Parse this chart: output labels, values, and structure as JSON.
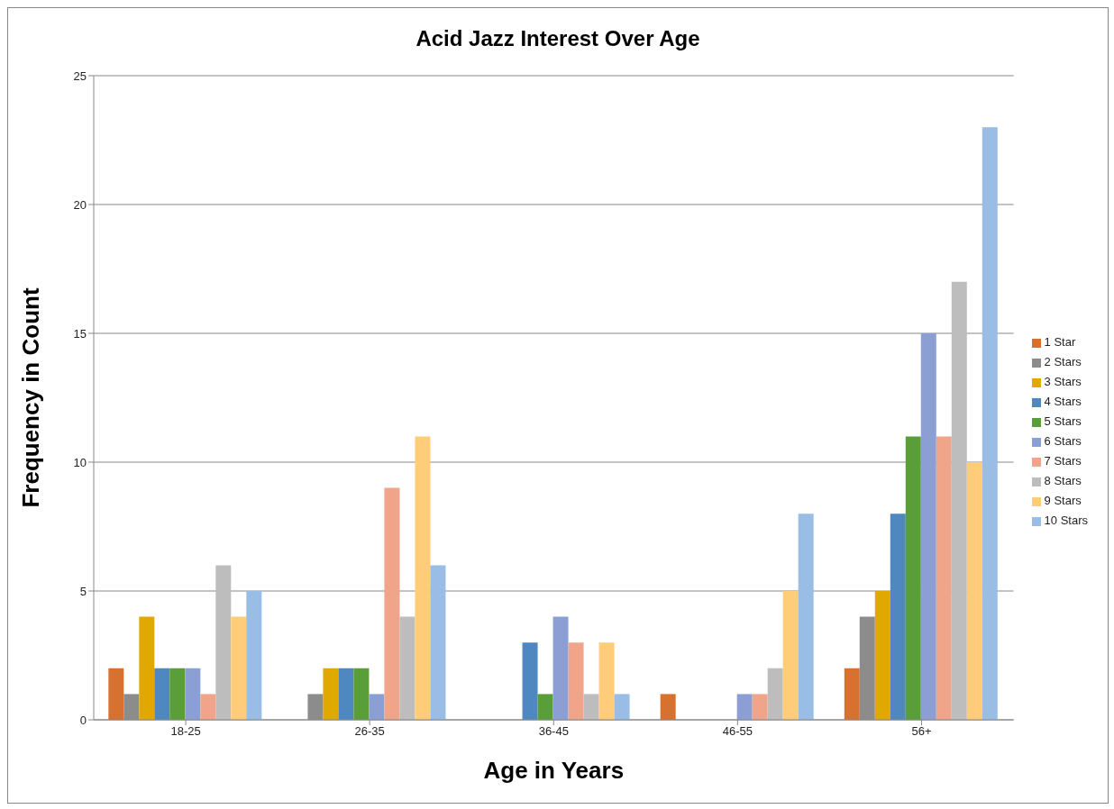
{
  "chart_data": {
    "type": "bar",
    "title": "Acid Jazz Interest Over Age",
    "xlabel": "Age in Years",
    "ylabel": "Frequency in Count",
    "categories": [
      "18-25",
      "26-35",
      "36-45",
      "46-55",
      "56+"
    ],
    "series": [
      {
        "name": "1 Star",
        "color": "#d6712f",
        "values": [
          2,
          0,
          0,
          1,
          2
        ]
      },
      {
        "name": "2 Stars",
        "color": "#8c8c8c",
        "values": [
          1,
          1,
          0,
          0,
          4
        ]
      },
      {
        "name": "3 Stars",
        "color": "#e0a800",
        "values": [
          4,
          2,
          0,
          0,
          5
        ]
      },
      {
        "name": "4 Stars",
        "color": "#4f87c0",
        "values": [
          2,
          2,
          3,
          0,
          8
        ]
      },
      {
        "name": "5 Stars",
        "color": "#5a9e3a",
        "values": [
          2,
          2,
          1,
          0,
          11
        ]
      },
      {
        "name": "6 Stars",
        "color": "#8c9fd4",
        "values": [
          2,
          1,
          4,
          1,
          15
        ]
      },
      {
        "name": "7 Stars",
        "color": "#f0a58a",
        "values": [
          1,
          9,
          3,
          1,
          11
        ]
      },
      {
        "name": "8 Stars",
        "color": "#bdbdbd",
        "values": [
          6,
          4,
          1,
          2,
          17
        ]
      },
      {
        "name": "9 Stars",
        "color": "#ffcc7a",
        "values": [
          4,
          11,
          3,
          5,
          10
        ]
      },
      {
        "name": "10 Stars",
        "color": "#99bde4",
        "values": [
          5,
          6,
          1,
          8,
          23
        ]
      }
    ],
    "ylim": [
      0,
      25
    ],
    "yticks": [
      0,
      5,
      10,
      15,
      20,
      25
    ],
    "grid": "y",
    "legend": "right"
  }
}
